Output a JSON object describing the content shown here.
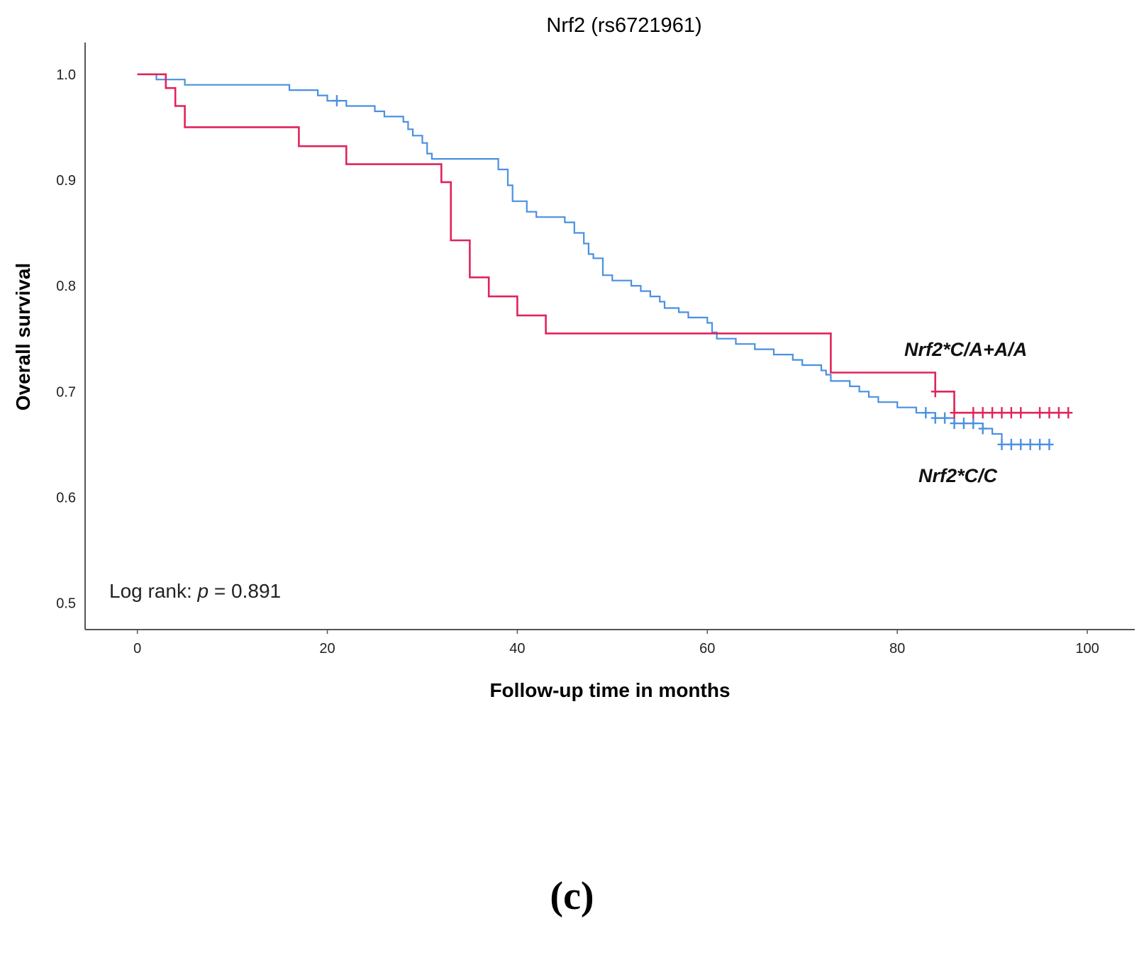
{
  "figure": {
    "panel_label": "(c)"
  },
  "chart_data": {
    "type": "line",
    "subtype": "kaplan-meier",
    "title": "Nrf2 (rs6721961)",
    "xlabel": "Follow-up time in months",
    "ylabel": "Overall survival",
    "xlim": [
      -5.5,
      105
    ],
    "ylim": [
      0.475,
      1.03
    ],
    "xticks": [
      0,
      20,
      40,
      60,
      80,
      100
    ],
    "yticks": [
      0.5,
      0.6,
      0.7,
      0.8,
      0.9,
      1.0
    ],
    "xtick_labels": [
      "0",
      "20",
      "40",
      "60",
      "80",
      "100"
    ],
    "ytick_labels": [
      "0.5",
      "0.6",
      "0.7",
      "0.8",
      "0.9",
      "1.0"
    ],
    "annotation": {
      "prefix": "Log rank: ",
      "italic": "p",
      "suffix": " = 0.891"
    },
    "series": [
      {
        "name": "Nrf2*C/C",
        "label": "Nrf2*C/C",
        "color": "#4a90e2",
        "steps": [
          [
            0,
            1.0
          ],
          [
            2,
            0.995
          ],
          [
            5,
            0.99
          ],
          [
            16,
            0.985
          ],
          [
            19,
            0.98
          ],
          [
            20,
            0.975
          ],
          [
            22,
            0.97
          ],
          [
            25,
            0.965
          ],
          [
            26,
            0.96
          ],
          [
            28,
            0.955
          ],
          [
            28.5,
            0.948
          ],
          [
            29,
            0.942
          ],
          [
            30,
            0.935
          ],
          [
            30.5,
            0.925
          ],
          [
            31,
            0.92
          ],
          [
            38,
            0.91
          ],
          [
            39,
            0.895
          ],
          [
            39.5,
            0.88
          ],
          [
            41,
            0.87
          ],
          [
            42,
            0.865
          ],
          [
            45,
            0.86
          ],
          [
            46,
            0.85
          ],
          [
            47,
            0.84
          ],
          [
            47.5,
            0.83
          ],
          [
            48,
            0.826
          ],
          [
            49,
            0.81
          ],
          [
            50,
            0.805
          ],
          [
            52,
            0.8
          ],
          [
            53,
            0.795
          ],
          [
            54,
            0.79
          ],
          [
            55,
            0.785
          ],
          [
            55.5,
            0.779
          ],
          [
            57,
            0.775
          ],
          [
            58,
            0.77
          ],
          [
            60,
            0.765
          ],
          [
            60.5,
            0.756
          ],
          [
            61,
            0.75
          ],
          [
            63,
            0.745
          ],
          [
            65,
            0.74
          ],
          [
            67,
            0.735
          ],
          [
            69,
            0.73
          ],
          [
            70,
            0.725
          ],
          [
            72,
            0.72
          ],
          [
            72.5,
            0.716
          ],
          [
            73,
            0.71
          ],
          [
            75,
            0.705
          ],
          [
            76,
            0.7
          ],
          [
            77,
            0.695
          ],
          [
            78,
            0.69
          ],
          [
            80,
            0.685
          ],
          [
            82,
            0.68
          ],
          [
            84,
            0.675
          ],
          [
            86,
            0.67
          ],
          [
            89,
            0.665
          ],
          [
            90,
            0.66
          ],
          [
            91,
            0.65
          ],
          [
            96,
            0.65
          ]
        ],
        "censored_times": [
          21,
          83,
          84,
          85,
          86,
          87,
          88,
          89,
          91,
          92,
          93,
          94,
          95,
          96
        ]
      },
      {
        "name": "Nrf2*C/A+A/A",
        "label": "Nrf2*C/A+A/A",
        "color": "#e0245a",
        "steps": [
          [
            0,
            1.0
          ],
          [
            3,
            0.987
          ],
          [
            4,
            0.97
          ],
          [
            5,
            0.95
          ],
          [
            17,
            0.932
          ],
          [
            22,
            0.915
          ],
          [
            32,
            0.898
          ],
          [
            33,
            0.843
          ],
          [
            35,
            0.808
          ],
          [
            37,
            0.79
          ],
          [
            40,
            0.772
          ],
          [
            43,
            0.755
          ],
          [
            73,
            0.718
          ],
          [
            84,
            0.7
          ],
          [
            86,
            0.68
          ],
          [
            98,
            0.68
          ]
        ],
        "censored_times": [
          84,
          86,
          88,
          89,
          90,
          91,
          92,
          93,
          95,
          96,
          97,
          98
        ]
      }
    ]
  }
}
